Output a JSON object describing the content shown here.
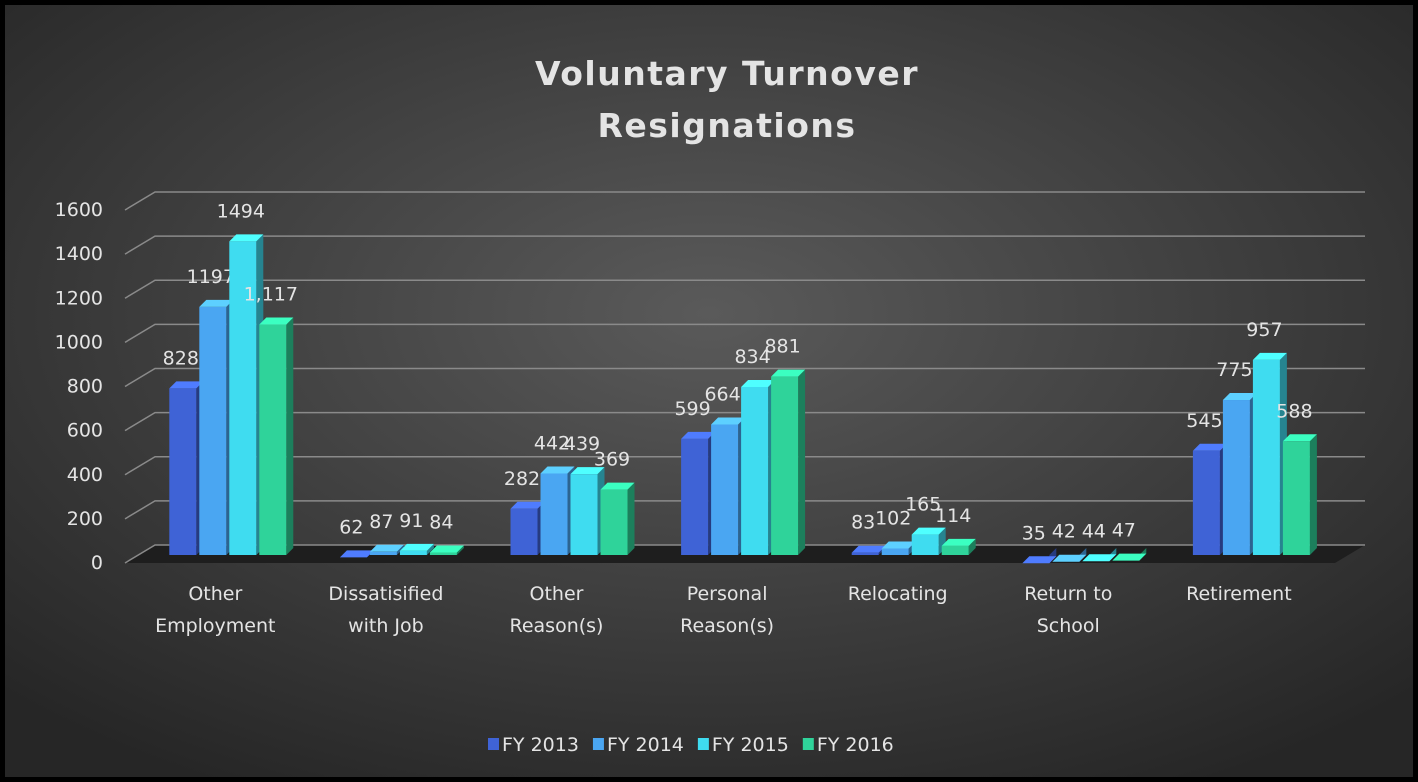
{
  "chart_data": {
    "type": "bar3d",
    "title": "Voluntary Turnover\nResignations",
    "categories": [
      "Other\nEmployment",
      "Dissatisified\nwith Job",
      "Other\nReason(s)",
      "Personal\nReason(s)",
      "Relocating",
      "Return to\nSchool",
      "Retirement"
    ],
    "series": [
      {
        "name": "FY 2013",
        "color": "#3f63d6",
        "values": [
          828,
          62,
          282,
          599,
          83,
          35,
          545
        ]
      },
      {
        "name": "FY 2014",
        "color": "#4aa6f2",
        "values": [
          1197,
          87,
          442,
          664,
          102,
          42,
          775
        ]
      },
      {
        "name": "FY 2015",
        "color": "#3fdcf0",
        "values": [
          1494,
          91,
          439,
          834,
          165,
          44,
          957
        ]
      },
      {
        "name": "FY 2016",
        "color": "#2fd39a",
        "values": [
          1117,
          84,
          369,
          881,
          114,
          47,
          588
        ],
        "value_labels": [
          "1,117",
          "84",
          "369",
          "881",
          "114",
          "47",
          "588"
        ]
      }
    ],
    "ylim": [
      0,
      1600
    ],
    "yticks": [
      0,
      200,
      400,
      600,
      800,
      1000,
      1200,
      1400,
      1600
    ],
    "grid": true,
    "legend": "bottom"
  }
}
